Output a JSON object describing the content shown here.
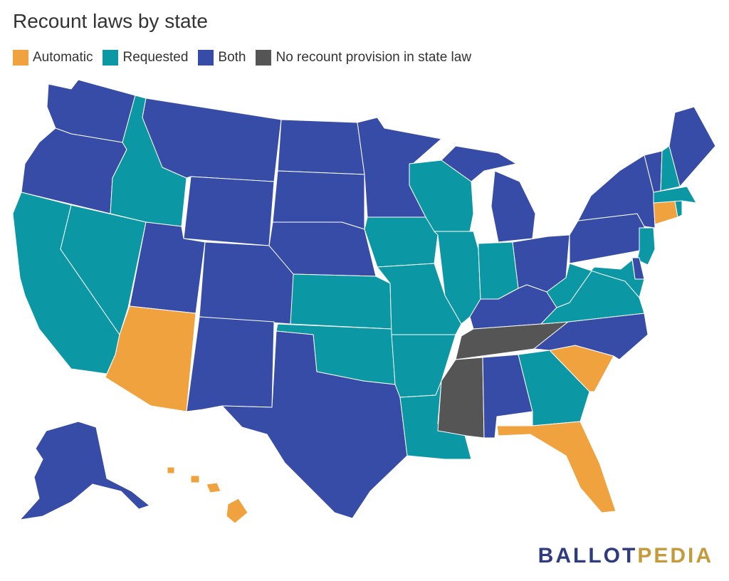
{
  "title": "Recount laws by state",
  "legend": [
    {
      "label": "Automatic",
      "color": "#f0a23e"
    },
    {
      "label": "Requested",
      "color": "#0b97a3"
    },
    {
      "label": "Both",
      "color": "#374ca6"
    },
    {
      "label": "No recount provision in state law",
      "color": "#555555"
    }
  ],
  "colors": {
    "automatic": "#f0a23e",
    "requested": "#0b97a3",
    "both": "#374ca6",
    "none": "#555555"
  },
  "brand": {
    "part1": "BALLOT",
    "part2": "PEDIA"
  },
  "states": {
    "WA": "both",
    "OR": "both",
    "CA": "requested",
    "NV": "requested",
    "ID": "requested",
    "MT": "both",
    "WY": "both",
    "UT": "both",
    "CO": "both",
    "AZ": "automatic",
    "NM": "both",
    "ND": "both",
    "SD": "both",
    "NE": "both",
    "KS": "requested",
    "OK": "requested",
    "TX": "both",
    "MN": "both",
    "IA": "requested",
    "MO": "requested",
    "AR": "requested",
    "LA": "requested",
    "WI": "requested",
    "IL": "requested",
    "MI": "both",
    "IN": "requested",
    "OH": "both",
    "KY": "both",
    "TN": "none",
    "MS": "none",
    "AL": "both",
    "GA": "requested",
    "FL": "automatic",
    "SC": "automatic",
    "NC": "both",
    "VA": "requested",
    "WV": "requested",
    "PA": "both",
    "NY": "both",
    "VT": "both",
    "NH": "requested",
    "ME": "both",
    "MA": "requested",
    "RI": "requested",
    "CT": "automatic",
    "NJ": "requested",
    "DE": "both",
    "MD": "requested",
    "AK": "both",
    "HI": "automatic"
  }
}
